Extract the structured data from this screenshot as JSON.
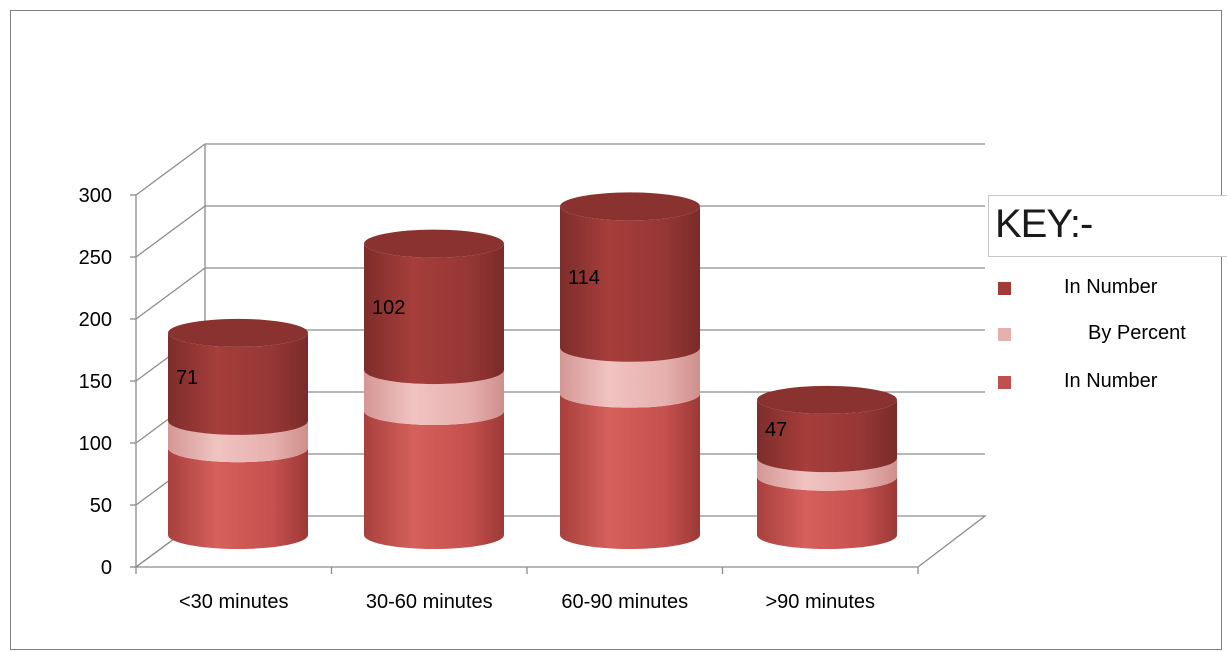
{
  "chart_data": {
    "type": "bar",
    "style": "3d-stacked-cylinder",
    "categories": [
      "<30 minutes",
      "30-60 minutes",
      "60-90 minutes",
      ">90 minutes"
    ],
    "yticks": [
      "0",
      "50",
      "100",
      "150",
      "200",
      "250",
      "300"
    ],
    "ylim": [
      0,
      300
    ],
    "grid": true,
    "series": [
      {
        "name": "In Number",
        "values": [
          70,
          100,
          114,
          47
        ],
        "color": "#c0504d"
      },
      {
        "name": "By Percent",
        "values": [
          22,
          33,
          37,
          15
        ],
        "color": "#e6b0af"
      },
      {
        "name": "In Number",
        "values": [
          71,
          102,
          114,
          47
        ],
        "color": "#953735"
      }
    ],
    "data_labels": [
      "71",
      "102",
      "114",
      "47"
    ],
    "legend": {
      "title": "KEY:-",
      "placement": "right",
      "items": [
        {
          "label": "In Number",
          "color": "#a23a38"
        },
        {
          "label": "By Percent",
          "color": "#e6b0af"
        },
        {
          "label": "In Number",
          "color": "#c0504d"
        }
      ]
    }
  }
}
